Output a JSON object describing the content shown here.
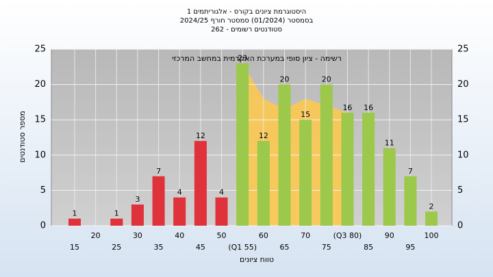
{
  "chart_data": {
    "type": "bar",
    "title": [
      "היסטוגרמת ציונים בקורס - אלגוריתמים 1",
      "בסמסטר (01/2024) סמסטר חורף 2024/25",
      "סטודנטים רשומים - 262"
    ],
    "annotation": "רשימה - ציון סופי במערכת האקדמית במחשב המרכזי",
    "x_label": "טווח ציונים",
    "y_label": "מספר סטודנטים",
    "categories": [
      "15",
      "20",
      "25",
      "30",
      "35",
      "40",
      "45",
      "50",
      "(Q1 55)",
      "60",
      "65",
      "70",
      "75",
      "(Q3 80)",
      "85",
      "90",
      "95",
      "100"
    ],
    "values": [
      1,
      0,
      1,
      3,
      7,
      4,
      12,
      4,
      23,
      12,
      20,
      15,
      20,
      16,
      16,
      11,
      7,
      2
    ],
    "colors": [
      "#e0323a",
      "#e0323a",
      "#e0323a",
      "#e0323a",
      "#e0323a",
      "#e0323a",
      "#e0323a",
      "#e0323a",
      "#9cc84c",
      "#9cc84c",
      "#9cc84c",
      "#9cc84c",
      "#9cc84c",
      "#9cc84c",
      "#9cc84c",
      "#9cc84c",
      "#9cc84c",
      "#9cc84c"
    ],
    "band": {
      "color": "#ffc94a",
      "values": [
        null,
        null,
        null,
        null,
        null,
        null,
        null,
        null,
        23,
        18,
        16.5,
        18,
        17,
        16,
        null,
        null,
        null,
        null
      ]
    },
    "ylim": [
      0,
      25
    ],
    "yticks": [
      0,
      5,
      10,
      15,
      20,
      25
    ],
    "grid": true
  }
}
